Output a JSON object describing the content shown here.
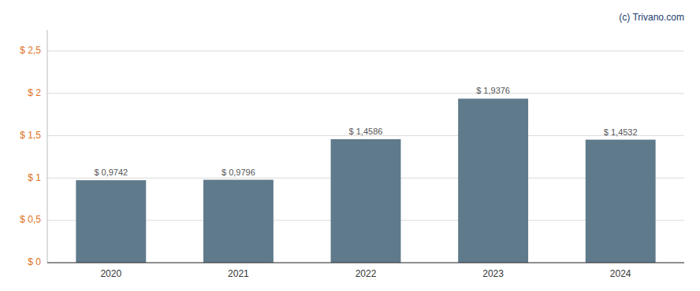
{
  "chart_data": {
    "type": "bar",
    "categories": [
      "2020",
      "2021",
      "2022",
      "2023",
      "2024"
    ],
    "values": [
      0.9742,
      0.9796,
      1.4586,
      1.9376,
      1.4532
    ],
    "value_labels": [
      "$ 0,9742",
      "$ 0,9796",
      "$ 1,4586",
      "$ 1,9376",
      "$ 1,4532"
    ],
    "color": "#5f7a8b",
    "ylim": [
      0,
      2.75
    ],
    "yticks": [
      {
        "value": 0,
        "label": "$ 0"
      },
      {
        "value": 0.5,
        "label": "$ 0,5"
      },
      {
        "value": 1.0,
        "label": "$ 1"
      },
      {
        "value": 1.5,
        "label": "$ 1,5"
      },
      {
        "value": 2.0,
        "label": "$ 2"
      },
      {
        "value": 2.5,
        "label": "$ 2,5"
      }
    ],
    "grid": true,
    "data_labels": true,
    "annotations": [
      "(c) Trivano.com"
    ]
  }
}
